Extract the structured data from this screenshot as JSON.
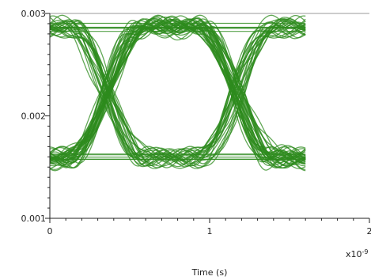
{
  "chart_data": {
    "type": "line",
    "title": "",
    "xlabel": "Time (s)",
    "ylabel": "",
    "x_multiplier_label": "x10",
    "x_multiplier_exponent": "-9",
    "xlim": [
      0,
      2
    ],
    "ylim": [
      0.001,
      0.003
    ],
    "x_ticks": [
      0,
      1,
      2
    ],
    "x_tick_labels": [
      "0",
      "1",
      "2"
    ],
    "y_ticks": [
      0.001,
      0.002,
      0.003
    ],
    "y_tick_labels": [
      "0.001",
      "0.002",
      "0.003"
    ],
    "grid": false,
    "legend": "none",
    "series": [
      {
        "style": "eye-diagram",
        "color": "#2e8b1e",
        "unit_interval": 0.82,
        "x_start": 0.0,
        "x_end": 1.6,
        "level_low": 0.00159,
        "level_high": 0.00286,
        "crossing_level": 0.00223,
        "crossings_x": [
          0.35,
          1.17
        ],
        "jitter_x": 0.04
      }
    ]
  }
}
